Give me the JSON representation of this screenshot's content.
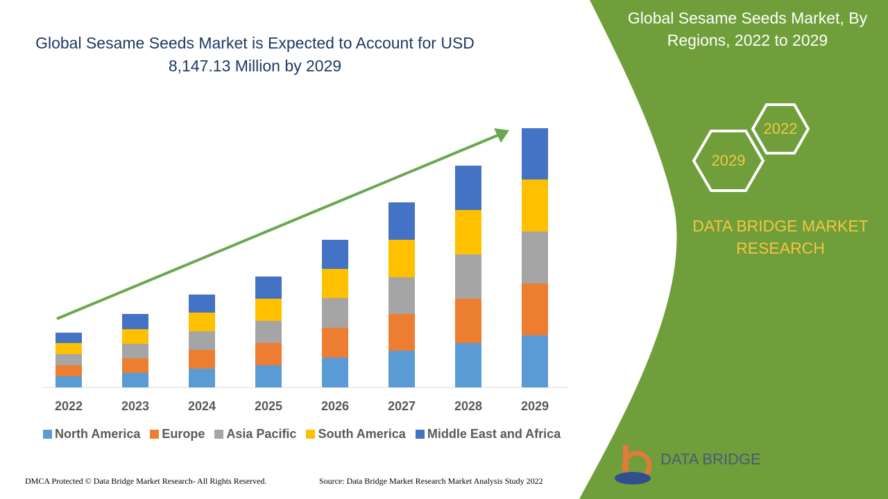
{
  "chart_data": {
    "type": "stacked-bar",
    "title": "Global Sesame Seeds Market is Expected to Account for USD 8,147.13 Million by 2029",
    "categories": [
      "2022",
      "2023",
      "2024",
      "2025",
      "2026",
      "2027",
      "2028",
      "2029"
    ],
    "series": [
      {
        "name": "North America",
        "color": "#5b9bd5",
        "values": [
          16,
          21,
          27,
          32,
          43,
          53,
          64,
          75
        ]
      },
      {
        "name": "Europe",
        "color": "#ed7d31",
        "values": [
          16,
          21,
          27,
          32,
          43,
          53,
          64,
          75
        ]
      },
      {
        "name": "Asia Pacific",
        "color": "#a5a5a5",
        "values": [
          16,
          21,
          27,
          32,
          43,
          53,
          64,
          75
        ]
      },
      {
        "name": "South America",
        "color": "#ffc000",
        "values": [
          16,
          21,
          27,
          32,
          42,
          54,
          64,
          75
        ]
      },
      {
        "name": "Middle East and Africa",
        "color": "#4472c4",
        "values": [
          15,
          22,
          26,
          32,
          42,
          54,
          64,
          74
        ]
      }
    ]
  },
  "side_panel": {
    "title": "Global Sesame Seeds Market, By Regions, 2022 to 2029",
    "hexagons": [
      "2022",
      "2029"
    ],
    "brand": "DATA BRIDGE MARKET RESEARCH"
  },
  "logo": {
    "text": "DATA BRIDGE"
  },
  "footer": {
    "copyright": "DMCA Protected © Data Bridge Market Research- All Rights Reserved.",
    "source": "Source: Data Bridge Market Research Market Analysis Study 2022"
  }
}
